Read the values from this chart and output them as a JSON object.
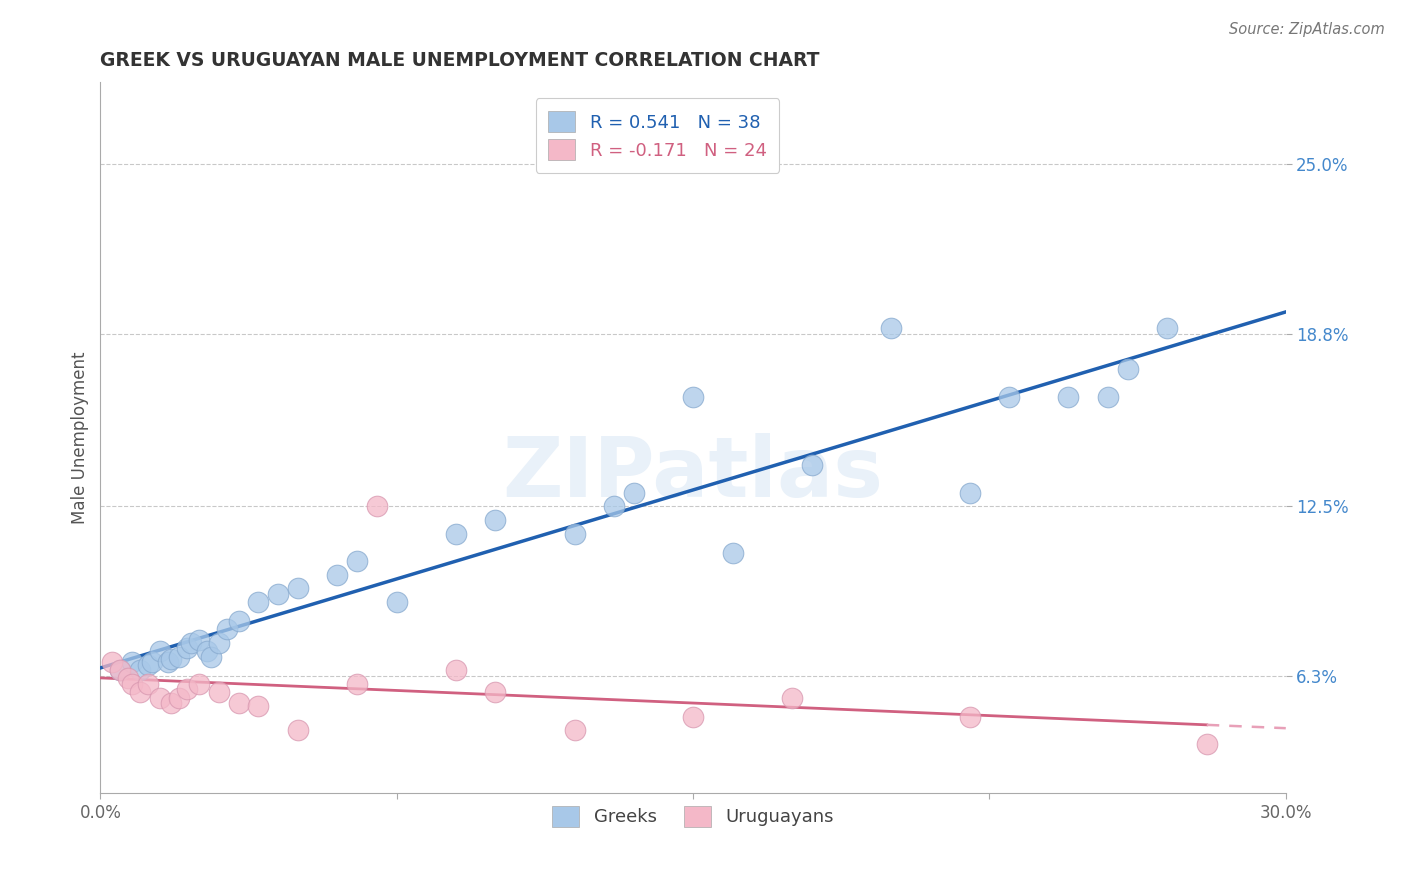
{
  "title": "GREEK VS URUGUAYAN MALE UNEMPLOYMENT CORRELATION CHART",
  "source": "Source: ZipAtlas.com",
  "ylabel": "Male Unemployment",
  "xlim": [
    0.0,
    0.3
  ],
  "ylim": [
    0.02,
    0.28
  ],
  "yticks": [
    0.063,
    0.125,
    0.188,
    0.25
  ],
  "ytick_labels": [
    "6.3%",
    "12.5%",
    "18.8%",
    "25.0%"
  ],
  "xticks": [
    0.0,
    0.075,
    0.15,
    0.225,
    0.3
  ],
  "xtick_labels": [
    "0.0%",
    "",
    "",
    "",
    "30.0%"
  ],
  "greek_r": 0.541,
  "greek_n": 38,
  "uruguayan_r": -0.171,
  "uruguayan_n": 24,
  "greek_color": "#A8C8E8",
  "uruguayan_color": "#F4B8C8",
  "greek_line_color": "#2060B0",
  "uruguayan_line_color": "#D06080",
  "uruguayan_dashed_color": "#E8A0B8",
  "background_color": "#ffffff",
  "watermark": "ZIPatlas",
  "greek_x": [
    0.005,
    0.008,
    0.01,
    0.012,
    0.013,
    0.015,
    0.017,
    0.018,
    0.02,
    0.022,
    0.023,
    0.025,
    0.027,
    0.028,
    0.03,
    0.032,
    0.035,
    0.04,
    0.045,
    0.05,
    0.06,
    0.065,
    0.075,
    0.09,
    0.1,
    0.12,
    0.13,
    0.135,
    0.15,
    0.16,
    0.18,
    0.2,
    0.22,
    0.23,
    0.245,
    0.255,
    0.26,
    0.27
  ],
  "greek_y": [
    0.065,
    0.068,
    0.065,
    0.067,
    0.068,
    0.072,
    0.068,
    0.069,
    0.07,
    0.073,
    0.075,
    0.076,
    0.072,
    0.07,
    0.075,
    0.08,
    0.083,
    0.09,
    0.093,
    0.095,
    0.1,
    0.105,
    0.09,
    0.115,
    0.12,
    0.115,
    0.125,
    0.13,
    0.165,
    0.108,
    0.14,
    0.19,
    0.13,
    0.165,
    0.165,
    0.165,
    0.175,
    0.19
  ],
  "uruguayan_x": [
    0.003,
    0.005,
    0.007,
    0.008,
    0.01,
    0.012,
    0.015,
    0.018,
    0.02,
    0.022,
    0.025,
    0.03,
    0.035,
    0.04,
    0.05,
    0.065,
    0.07,
    0.09,
    0.1,
    0.12,
    0.15,
    0.175,
    0.22,
    0.28
  ],
  "uruguayan_y": [
    0.068,
    0.065,
    0.062,
    0.06,
    0.057,
    0.06,
    0.055,
    0.053,
    0.055,
    0.058,
    0.06,
    0.057,
    0.053,
    0.052,
    0.043,
    0.06,
    0.125,
    0.065,
    0.057,
    0.043,
    0.048,
    0.055,
    0.048,
    0.038
  ]
}
